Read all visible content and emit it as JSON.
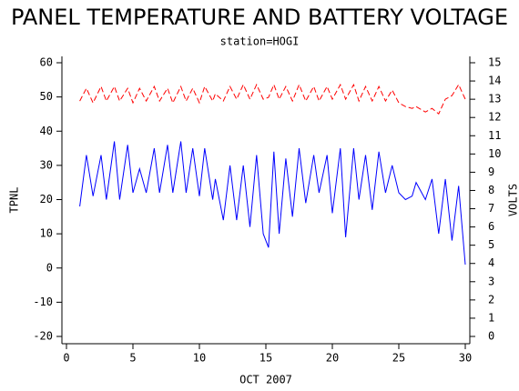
{
  "chart_data": {
    "type": "line",
    "title": "PANEL TEMPERATURE AND BATTERY VOLTAGE",
    "subtitle": "station=HOGI",
    "x_label": "OCT 2007",
    "y_label": "TPNL",
    "y2_label": "VOLTS",
    "x": [
      1.0,
      1.5,
      2.0,
      2.6,
      3.0,
      3.6,
      4.0,
      4.6,
      5.0,
      5.5,
      6.0,
      6.6,
      7.0,
      7.6,
      8.0,
      8.6,
      9.0,
      9.5,
      10.0,
      10.4,
      11.0,
      11.2,
      11.8,
      12.3,
      12.8,
      13.3,
      13.8,
      14.3,
      14.8,
      15.2,
      15.6,
      16.0,
      16.5,
      17.0,
      17.5,
      18.0,
      18.6,
      19.0,
      19.6,
      20.0,
      20.6,
      21.0,
      21.6,
      22.0,
      22.5,
      23.0,
      23.5,
      24.0,
      24.5,
      25.0,
      25.5,
      26.0,
      26.3,
      27.0,
      27.5,
      28.0,
      28.5,
      29.0,
      29.5,
      30.0
    ],
    "series": [
      {
        "name": "TPNL",
        "color": "#0000ff",
        "dashed": false,
        "values": [
          18,
          33,
          21,
          33,
          20,
          37,
          20,
          36,
          22,
          29,
          22,
          35,
          22,
          36,
          22,
          37,
          22,
          35,
          21,
          35,
          20,
          26,
          14,
          30,
          14,
          30,
          12,
          33,
          10,
          6,
          34,
          10,
          32,
          15,
          35,
          19,
          33,
          22,
          33,
          16,
          35,
          9,
          35,
          20,
          33,
          17,
          34,
          22,
          30,
          22,
          20,
          21,
          25,
          20,
          26,
          10,
          26,
          8,
          24,
          1
        ]
      },
      {
        "name": "VOLTS",
        "color": "#ff0000",
        "dashed": true,
        "axis": "y2",
        "values": [
          12.9,
          13.6,
          12.8,
          13.7,
          12.9,
          13.7,
          12.9,
          13.6,
          12.8,
          13.6,
          12.9,
          13.7,
          12.9,
          13.6,
          12.8,
          13.7,
          12.9,
          13.6,
          12.8,
          13.7,
          12.9,
          13.3,
          12.9,
          13.7,
          13.0,
          13.8,
          13.0,
          13.8,
          13.0,
          13.1,
          13.8,
          13.0,
          13.7,
          12.9,
          13.8,
          12.9,
          13.7,
          12.9,
          13.7,
          13.0,
          13.8,
          13.0,
          13.8,
          12.9,
          13.7,
          12.9,
          13.7,
          12.9,
          13.5,
          12.8,
          12.6,
          12.5,
          12.6,
          12.3,
          12.5,
          12.2,
          13.0,
          13.2,
          13.8,
          13.0
        ]
      }
    ],
    "xlim": [
      0,
      30
    ],
    "xticks": [
      0,
      5,
      10,
      15,
      20,
      25,
      30
    ],
    "ylim": [
      -20,
      60
    ],
    "yticks": [
      -20,
      -10,
      0,
      10,
      20,
      30,
      40,
      50,
      60
    ],
    "y2lim": [
      0,
      15
    ],
    "y2ticks": [
      0,
      1,
      2,
      3,
      4,
      5,
      6,
      7,
      8,
      9,
      10,
      11,
      12,
      13,
      14,
      15
    ]
  }
}
